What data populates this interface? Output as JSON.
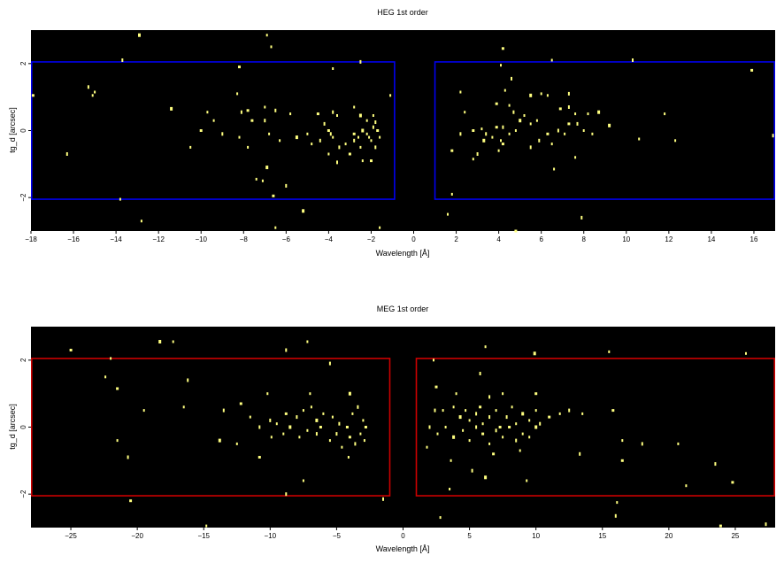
{
  "chart_data": [
    {
      "type": "scatter",
      "title": "HEG 1st order",
      "xlabel": "Wavelength [Å]",
      "ylabel": "tg_d [arcsec]",
      "xlim": [
        -18,
        17
      ],
      "ylim": [
        -3,
        3
      ],
      "xticks": [
        -18,
        -16,
        -14,
        -12,
        -10,
        -8,
        -6,
        -4,
        -2,
        0,
        2,
        4,
        6,
        8,
        10,
        12,
        14,
        16
      ],
      "yticks": [
        -2,
        0,
        2
      ],
      "background": "#000000",
      "point_color": "#ffff80",
      "region_color": "#0000ee",
      "regions": [
        {
          "x": [
            -18,
            -0.9
          ],
          "y": [
            -2.05,
            2.05
          ]
        },
        {
          "x": [
            1.0,
            17
          ],
          "y": [
            -2.05,
            2.05
          ]
        }
      ],
      "points": [
        [
          -12.9,
          2.85
        ],
        [
          -6.9,
          2.85
        ],
        [
          -6.7,
          2.5
        ],
        [
          -13.7,
          2.1
        ],
        [
          -8.2,
          1.9
        ],
        [
          -3.8,
          1.85
        ],
        [
          -2.5,
          2.05
        ],
        [
          -1.1,
          1.05
        ],
        [
          -17.9,
          1.05
        ],
        [
          -15.3,
          1.3
        ],
        [
          -15.1,
          1.05
        ],
        [
          -15.0,
          1.15
        ],
        [
          -11.4,
          0.65
        ],
        [
          -9.7,
          0.55
        ],
        [
          -8.3,
          1.1
        ],
        [
          -8.1,
          0.55
        ],
        [
          -7.8,
          0.6
        ],
        [
          -7.0,
          0.7
        ],
        [
          -6.5,
          0.6
        ],
        [
          -5.8,
          0.5
        ],
        [
          -4.5,
          0.5
        ],
        [
          -3.8,
          0.55
        ],
        [
          -3.6,
          0.45
        ],
        [
          -2.8,
          0.7
        ],
        [
          -2.5,
          0.45
        ],
        [
          -2.2,
          0.3
        ],
        [
          -1.9,
          0.45
        ],
        [
          -1.8,
          0.25
        ],
        [
          -10.0,
          0.0
        ],
        [
          -9.4,
          0.3
        ],
        [
          -9.0,
          -0.1
        ],
        [
          -8.2,
          -0.2
        ],
        [
          -7.6,
          0.3
        ],
        [
          -7.0,
          0.3
        ],
        [
          -6.8,
          -0.1
        ],
        [
          -6.3,
          -0.3
        ],
        [
          -5.5,
          -0.2
        ],
        [
          -5.0,
          -0.1
        ],
        [
          -4.8,
          -0.4
        ],
        [
          -4.4,
          -0.3
        ],
        [
          -4.0,
          0.0
        ],
        [
          -3.8,
          -0.2
        ],
        [
          -3.5,
          -0.5
        ],
        [
          -3.2,
          -0.4
        ],
        [
          -3.0,
          -0.7
        ],
        [
          -2.8,
          -0.3
        ],
        [
          -2.6,
          -0.2
        ],
        [
          -2.5,
          -0.5
        ],
        [
          -2.4,
          0.0
        ],
        [
          -2.2,
          -0.1
        ],
        [
          -2.0,
          -0.3
        ],
        [
          -1.8,
          -0.5
        ],
        [
          -1.7,
          0.0
        ],
        [
          -1.6,
          -0.2
        ],
        [
          -1.9,
          0.1
        ],
        [
          -2.1,
          -0.2
        ],
        [
          -2.8,
          -0.1
        ],
        [
          -3.9,
          -0.1
        ],
        [
          -10.5,
          -0.5
        ],
        [
          -7.8,
          -0.5
        ],
        [
          -6.9,
          -1.1
        ],
        [
          -7.1,
          -1.5
        ],
        [
          -7.4,
          -1.45
        ],
        [
          -6.0,
          -1.65
        ],
        [
          -6.6,
          -1.95
        ],
        [
          -4.0,
          -0.7
        ],
        [
          -3.6,
          -0.95
        ],
        [
          -2.4,
          -0.9
        ],
        [
          -2.0,
          -0.9
        ],
        [
          -16.3,
          -0.7
        ],
        [
          -13.8,
          -2.05
        ],
        [
          -12.8,
          -2.7
        ],
        [
          -5.2,
          -2.4
        ],
        [
          -6.5,
          -2.9
        ],
        [
          -1.6,
          -2.9
        ],
        [
          -4.2,
          0.2
        ],
        [
          4.2,
          2.45
        ],
        [
          6.5,
          2.1
        ],
        [
          10.3,
          2.1
        ],
        [
          4.1,
          1.95
        ],
        [
          15.9,
          1.8
        ],
        [
          4.6,
          1.55
        ],
        [
          2.2,
          1.15
        ],
        [
          4.3,
          1.2
        ],
        [
          5.5,
          1.05
        ],
        [
          6.0,
          1.1
        ],
        [
          6.3,
          1.05
        ],
        [
          7.3,
          1.1
        ],
        [
          3.9,
          0.8
        ],
        [
          4.5,
          0.75
        ],
        [
          4.7,
          0.55
        ],
        [
          5.2,
          0.45
        ],
        [
          6.9,
          0.65
        ],
        [
          7.3,
          0.7
        ],
        [
          7.6,
          0.5
        ],
        [
          8.2,
          0.5
        ],
        [
          8.7,
          0.55
        ],
        [
          11.8,
          0.5
        ],
        [
          2.4,
          0.55
        ],
        [
          2.2,
          -0.1
        ],
        [
          2.8,
          0.0
        ],
        [
          3.2,
          0.05
        ],
        [
          3.4,
          -0.1
        ],
        [
          3.7,
          -0.2
        ],
        [
          3.9,
          0.1
        ],
        [
          4.2,
          0.1
        ],
        [
          4.5,
          -0.1
        ],
        [
          4.8,
          0.0
        ],
        [
          5.0,
          0.3
        ],
        [
          5.5,
          0.2
        ],
        [
          5.8,
          0.3
        ],
        [
          5.9,
          -0.3
        ],
        [
          6.3,
          -0.1
        ],
        [
          6.5,
          -0.4
        ],
        [
          6.8,
          0.0
        ],
        [
          7.1,
          -0.1
        ],
        [
          7.3,
          0.2
        ],
        [
          7.7,
          0.2
        ],
        [
          8.0,
          0.0
        ],
        [
          8.4,
          -0.1
        ],
        [
          9.2,
          0.15
        ],
        [
          10.6,
          -0.25
        ],
        [
          12.3,
          -0.3
        ],
        [
          16.9,
          -0.15
        ],
        [
          1.8,
          -0.6
        ],
        [
          2.8,
          -0.85
        ],
        [
          3.0,
          -0.7
        ],
        [
          4.0,
          -0.6
        ],
        [
          4.2,
          -0.4
        ],
        [
          5.5,
          -0.5
        ],
        [
          6.6,
          -1.15
        ],
        [
          7.6,
          -0.8
        ],
        [
          3.3,
          -0.3
        ],
        [
          1.8,
          -1.9
        ],
        [
          1.6,
          -2.5
        ],
        [
          7.9,
          -2.6
        ],
        [
          4.8,
          -3.0
        ],
        [
          4.1,
          -0.3
        ]
      ]
    },
    {
      "type": "scatter",
      "title": "MEG 1st order",
      "xlabel": "Wavelength [Å]",
      "ylabel": "tg_d [arcsec]",
      "xlim": [
        -28,
        28
      ],
      "ylim": [
        -3,
        3
      ],
      "xticks": [
        -25,
        -20,
        -15,
        -10,
        -5,
        0,
        5,
        10,
        15,
        20,
        25
      ],
      "yticks": [
        -2,
        0,
        2
      ],
      "background": "#000000",
      "point_color": "#ffff80",
      "region_color": "#cc0000",
      "regions": [
        {
          "x": [
            -28,
            -1.0
          ],
          "y": [
            -2.05,
            2.05
          ]
        },
        {
          "x": [
            1.0,
            28
          ],
          "y": [
            -2.05,
            2.05
          ]
        }
      ],
      "points": [
        [
          -18.3,
          2.55
        ],
        [
          -17.3,
          2.55
        ],
        [
          -7.2,
          2.55
        ],
        [
          -8.8,
          2.3
        ],
        [
          -25.0,
          2.3
        ],
        [
          -22.0,
          2.05
        ],
        [
          -5.5,
          1.9
        ],
        [
          -22.4,
          1.5
        ],
        [
          -21.5,
          1.15
        ],
        [
          -16.2,
          1.4
        ],
        [
          -10.2,
          1.0
        ],
        [
          -7.0,
          1.0
        ],
        [
          -4.0,
          1.0
        ],
        [
          -19.5,
          0.5
        ],
        [
          -16.5,
          0.6
        ],
        [
          -13.5,
          0.5
        ],
        [
          -12.2,
          0.7
        ],
        [
          -11.5,
          0.3
        ],
        [
          -10.0,
          0.2
        ],
        [
          -9.5,
          0.1
        ],
        [
          -8.8,
          0.4
        ],
        [
          -8.0,
          0.3
        ],
        [
          -7.5,
          0.5
        ],
        [
          -6.9,
          0.6
        ],
        [
          -6.5,
          0.2
        ],
        [
          -6.0,
          0.4
        ],
        [
          -5.3,
          0.3
        ],
        [
          -4.8,
          0.1
        ],
        [
          -4.2,
          0.0
        ],
        [
          -3.8,
          0.4
        ],
        [
          -3.4,
          0.6
        ],
        [
          -3.0,
          0.2
        ],
        [
          -2.8,
          0.0
        ],
        [
          -10.8,
          0.0
        ],
        [
          -9.9,
          -0.3
        ],
        [
          -9.0,
          -0.2
        ],
        [
          -8.5,
          0.0
        ],
        [
          -7.8,
          -0.3
        ],
        [
          -7.2,
          -0.1
        ],
        [
          -6.5,
          -0.2
        ],
        [
          -6.2,
          0.0
        ],
        [
          -5.5,
          -0.4
        ],
        [
          -5.0,
          -0.2
        ],
        [
          -4.6,
          -0.6
        ],
        [
          -4.0,
          -0.3
        ],
        [
          -3.6,
          -0.5
        ],
        [
          -3.2,
          -0.2
        ],
        [
          -2.9,
          -0.4
        ],
        [
          -13.8,
          -0.4
        ],
        [
          -12.5,
          -0.5
        ],
        [
          -21.5,
          -0.4
        ],
        [
          -20.7,
          -0.9
        ],
        [
          -10.8,
          -0.9
        ],
        [
          -7.5,
          -1.6
        ],
        [
          -8.8,
          -2.0
        ],
        [
          -4.1,
          -0.9
        ],
        [
          -20.5,
          -2.2
        ],
        [
          -1.5,
          -2.15
        ],
        [
          -14.8,
          -2.95
        ],
        [
          6.2,
          2.4
        ],
        [
          9.9,
          2.2
        ],
        [
          25.8,
          2.2
        ],
        [
          2.3,
          2.0
        ],
        [
          5.8,
          1.6
        ],
        [
          2.5,
          1.2
        ],
        [
          4.0,
          1.0
        ],
        [
          6.5,
          0.9
        ],
        [
          7.5,
          1.0
        ],
        [
          10.0,
          1.0
        ],
        [
          2.4,
          0.5
        ],
        [
          3.0,
          0.5
        ],
        [
          3.8,
          0.6
        ],
        [
          4.3,
          0.3
        ],
        [
          4.7,
          0.5
        ],
        [
          5.0,
          0.2
        ],
        [
          5.5,
          0.4
        ],
        [
          5.8,
          0.6
        ],
        [
          6.0,
          0.1
        ],
        [
          6.5,
          0.3
        ],
        [
          7.0,
          0.5
        ],
        [
          7.3,
          0.0
        ],
        [
          7.8,
          0.3
        ],
        [
          8.2,
          0.6
        ],
        [
          8.5,
          0.1
        ],
        [
          9.0,
          0.4
        ],
        [
          9.5,
          0.2
        ],
        [
          10.0,
          0.5
        ],
        [
          10.3,
          0.1
        ],
        [
          11.0,
          0.3
        ],
        [
          11.8,
          0.4
        ],
        [
          12.5,
          0.5
        ],
        [
          13.5,
          0.4
        ],
        [
          15.8,
          0.5
        ],
        [
          2.0,
          0.0
        ],
        [
          2.6,
          -0.2
        ],
        [
          3.2,
          0.0
        ],
        [
          3.8,
          -0.3
        ],
        [
          4.5,
          -0.1
        ],
        [
          5.0,
          -0.4
        ],
        [
          5.5,
          0.0
        ],
        [
          6.0,
          -0.2
        ],
        [
          6.5,
          -0.5
        ],
        [
          7.0,
          -0.1
        ],
        [
          7.5,
          -0.3
        ],
        [
          8.0,
          0.0
        ],
        [
          8.5,
          -0.4
        ],
        [
          9.0,
          -0.2
        ],
        [
          9.5,
          -0.3
        ],
        [
          10.0,
          0.0
        ],
        [
          1.8,
          -0.6
        ],
        [
          3.6,
          -1.0
        ],
        [
          5.2,
          -1.3
        ],
        [
          6.8,
          -0.8
        ],
        [
          8.8,
          -0.7
        ],
        [
          13.3,
          -0.8
        ],
        [
          16.5,
          -0.4
        ],
        [
          16.5,
          -1.0
        ],
        [
          18.0,
          -0.5
        ],
        [
          20.7,
          -0.5
        ],
        [
          3.5,
          -1.85
        ],
        [
          6.2,
          -1.5
        ],
        [
          9.3,
          -1.6
        ],
        [
          21.3,
          -1.75
        ],
        [
          23.5,
          -1.1
        ],
        [
          24.8,
          -1.65
        ],
        [
          16.1,
          -2.25
        ],
        [
          16.0,
          -2.65
        ],
        [
          2.8,
          -2.7
        ],
        [
          23.9,
          -2.95
        ],
        [
          27.3,
          -2.9
        ],
        [
          15.5,
          2.25
        ]
      ]
    }
  ]
}
